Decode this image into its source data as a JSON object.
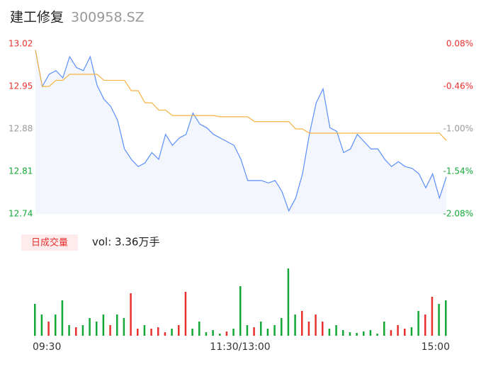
{
  "chart_data": [
    {
      "type": "line",
      "title": "建工修复",
      "subtitle": "300958.SZ",
      "x": [
        0,
        4,
        8,
        12,
        16,
        20,
        24,
        28,
        32,
        36,
        40,
        44,
        48,
        52,
        56,
        60,
        64,
        68,
        72,
        76,
        80,
        84,
        88,
        92,
        96,
        100,
        104,
        108,
        112,
        116,
        120,
        124,
        128,
        132,
        136,
        140,
        144,
        148,
        152,
        156,
        160,
        164,
        168,
        172,
        176,
        180,
        184,
        188,
        192,
        196,
        200,
        204,
        208,
        212,
        216,
        220,
        224,
        228,
        232,
        236,
        240
      ],
      "xlim": [
        0,
        240
      ],
      "xticks": [
        {
          "value": 0,
          "label": "09:30"
        },
        {
          "value": 120,
          "label": "11:30/13:00"
        },
        {
          "value": 240,
          "label": "15:00"
        }
      ],
      "ylim": [
        12.74,
        13.02
      ],
      "yticks": [
        13.02,
        12.95,
        12.88,
        12.81,
        12.74
      ],
      "ytick_colors": [
        "#e8312f",
        "#e8312f",
        "#999999",
        "#14a838",
        "#14a838"
      ],
      "y2lim": [
        -2.08,
        0.08
      ],
      "y2ticks": [
        {
          "value": 0.08,
          "label": "0.08%"
        },
        {
          "value": -0.46,
          "label": "-0.46%"
        },
        {
          "value": -1.0,
          "label": "-1.00%"
        },
        {
          "value": -1.54,
          "label": "-1.54%"
        },
        {
          "value": -2.08,
          "label": "-2.08%"
        }
      ],
      "y2tick_colors": [
        "#e8312f",
        "#e8312f",
        "#999999",
        "#14a838",
        "#14a838"
      ],
      "fill": "#f3f6fd",
      "series": [
        {
          "color": "#5b8ff9",
          "values": [
            13.01,
            12.95,
            12.97,
            12.976,
            12.964,
            12.999,
            12.981,
            12.976,
            12.999,
            12.952,
            12.929,
            12.917,
            12.894,
            12.847,
            12.83,
            12.818,
            12.824,
            12.841,
            12.83,
            12.871,
            12.853,
            12.865,
            12.871,
            12.906,
            12.888,
            12.882,
            12.871,
            12.865,
            12.859,
            12.853,
            12.83,
            12.795,
            12.795,
            12.795,
            12.791,
            12.795,
            12.777,
            12.745,
            12.766,
            12.806,
            12.871,
            12.923,
            12.946,
            12.882,
            12.876,
            12.841,
            12.847,
            12.871,
            12.859,
            12.847,
            12.847,
            12.83,
            12.818,
            12.826,
            12.818,
            12.815,
            12.806,
            12.783,
            12.806,
            12.766,
            12.801
          ]
        },
        {
          "color": "#f5b342",
          "values": [
            13.01,
            12.95,
            12.95,
            12.96,
            12.96,
            12.97,
            12.97,
            12.97,
            12.97,
            12.97,
            12.96,
            12.96,
            12.96,
            12.96,
            12.943,
            12.943,
            12.923,
            12.923,
            12.911,
            12.911,
            12.902,
            12.902,
            12.902,
            12.902,
            12.902,
            12.902,
            12.902,
            12.9,
            12.9,
            12.9,
            12.9,
            12.9,
            12.892,
            12.892,
            12.892,
            12.892,
            12.892,
            12.892,
            12.88,
            12.88,
            12.873,
            12.873,
            12.873,
            12.873,
            12.873,
            12.873,
            12.873,
            12.873,
            12.873,
            12.873,
            12.873,
            12.873,
            12.873,
            12.873,
            12.873,
            12.873,
            12.873,
            12.873,
            12.873,
            12.873,
            12.861
          ]
        }
      ]
    },
    {
      "type": "bar",
      "title": "日成交量",
      "annotation": "vol: 3.36万手",
      "x": [
        0,
        4,
        8,
        12,
        16,
        20,
        24,
        28,
        32,
        36,
        40,
        44,
        48,
        52,
        56,
        60,
        64,
        68,
        72,
        76,
        80,
        84,
        88,
        92,
        96,
        100,
        104,
        108,
        112,
        116,
        120,
        124,
        128,
        132,
        136,
        140,
        144,
        148,
        152,
        156,
        160,
        164,
        168,
        172,
        176,
        180,
        184,
        188,
        192,
        196,
        200,
        204,
        208,
        212,
        216,
        220,
        224,
        228,
        232,
        236,
        240
      ],
      "xlim": [
        0,
        240
      ],
      "xticks": [
        {
          "value": 0,
          "label": "09:30"
        },
        {
          "value": 120,
          "label": "11:30/13:00"
        },
        {
          "value": 240,
          "label": "15:00"
        }
      ],
      "ylim": [
        0,
        1200
      ],
      "values": [
        450,
        300,
        200,
        300,
        500,
        150,
        120,
        150,
        250,
        200,
        300,
        150,
        300,
        250,
        600,
        100,
        150,
        100,
        120,
        50,
        100,
        150,
        620,
        100,
        200,
        50,
        80,
        30,
        60,
        100,
        700,
        150,
        120,
        200,
        100,
        150,
        250,
        950,
        300,
        350,
        200,
        300,
        200,
        100,
        150,
        80,
        50,
        40,
        60,
        80,
        30,
        200,
        80,
        150,
        100,
        120,
        350,
        300,
        550,
        450,
        500
      ],
      "colors": [
        "#14a838",
        "#14a838",
        "#e8312f",
        "#14a838",
        "#14a838",
        "#14a838",
        "#e8312f",
        "#14a838",
        "#14a838",
        "#14a838",
        "#14a838",
        "#e8312f",
        "#14a838",
        "#14a838",
        "#e8312f",
        "#e8312f",
        "#14a838",
        "#e8312f",
        "#e8312f",
        "#e8312f",
        "#14a838",
        "#e8312f",
        "#e8312f",
        "#14a838",
        "#14a838",
        "#14a838",
        "#14a838",
        "#14a838",
        "#e8312f",
        "#14a838",
        "#14a838",
        "#14a838",
        "#e8312f",
        "#14a838",
        "#14a838",
        "#14a838",
        "#14a838",
        "#14a838",
        "#14a838",
        "#e8312f",
        "#e8312f",
        "#e8312f",
        "#e8312f",
        "#14a838",
        "#14a838",
        "#14a838",
        "#14a838",
        "#14a838",
        "#14a838",
        "#14a838",
        "#14a838",
        "#14a838",
        "#e8312f",
        "#e8312f",
        "#e8312f",
        "#14a838",
        "#14a838",
        "#e8312f",
        "#e8312f",
        "#14a838",
        "#14a838"
      ]
    }
  ]
}
